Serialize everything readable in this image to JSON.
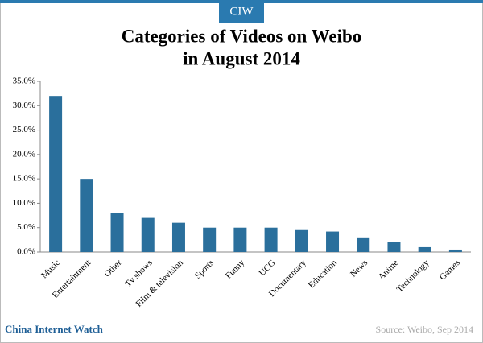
{
  "chart_data": {
    "type": "bar",
    "badge": "CIW",
    "title": [
      "Categories of Videos on Weibo",
      "in August 2014"
    ],
    "categories": [
      "Music",
      "Entertainment",
      "Other",
      "Tv shows",
      "Film & television",
      "Sports",
      "Funny",
      "UCG",
      "Documentary",
      "Education",
      "News",
      "Anime",
      "Technology",
      "Games"
    ],
    "values": [
      32,
      15,
      8,
      7,
      6,
      5,
      5,
      5,
      4.5,
      4.2,
      3,
      2,
      1,
      0.5
    ],
    "color": "#2a6f9c",
    "ylim": [
      0,
      35
    ],
    "yticks": [
      {
        "value": 0,
        "label": "0.0%"
      },
      {
        "value": 5,
        "label": "5.0%"
      },
      {
        "value": 10,
        "label": "10.0%"
      },
      {
        "value": 15,
        "label": "15.0%"
      },
      {
        "value": 20,
        "label": "20.0%"
      },
      {
        "value": 25,
        "label": "25.0%"
      },
      {
        "value": 30,
        "label": "30.0%"
      },
      {
        "value": 35,
        "label": "35.0%"
      }
    ],
    "grid": false,
    "footer": "China Internet Watch",
    "source": "Source: Weibo, Sep 2014"
  }
}
